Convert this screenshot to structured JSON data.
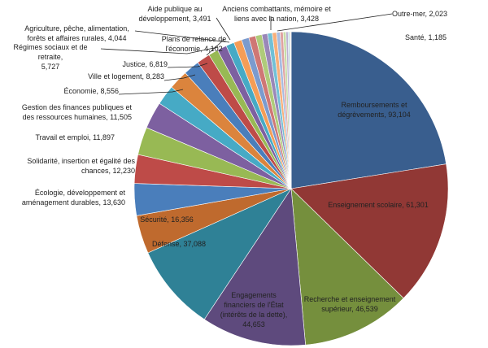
{
  "chart_data": {
    "type": "pie",
    "title": "",
    "start": "top",
    "direction": "clockwise",
    "slices": [
      {
        "label": "Remboursements et\ndégrèvements, 93,104",
        "name": "Remboursements et dégrèvements",
        "value": 93104,
        "color": "#395E8E"
      },
      {
        "label": "Enseignement scolaire, 61,301",
        "name": "Enseignement scolaire",
        "value": 61301,
        "color": "#913835"
      },
      {
        "label": "Recherche et enseignement\nsupérieur, 46,539",
        "name": "Recherche et enseignement supérieur",
        "value": 46539,
        "color": "#758F3D"
      },
      {
        "label": "Engagements\nfinanciers de l'État\n(intérêts de la dette),\n44,653",
        "name": "Engagements financiers de l'État (intérêts de la dette)",
        "value": 44653,
        "color": "#5E4A7D"
      },
      {
        "label": "Défense, 37,088",
        "name": "Défense",
        "value": 37088,
        "color": "#2F8196"
      },
      {
        "label": "Sécurité, 16,356",
        "name": "Sécurité",
        "value": 16356,
        "color": "#BF6A2E"
      },
      {
        "label": "Écologie, développement et\naménagement durables, 13,630",
        "name": "Écologie, développement et aménagement durables",
        "value": 13630,
        "color": "#4A7EBB"
      },
      {
        "label": "Solidarité, insertion et égalité des\nchances, 12,230",
        "name": "Solidarité, insertion et égalité des chances",
        "value": 12230,
        "color": "#BE4B48"
      },
      {
        "label": "Travail et emploi, 11,897",
        "name": "Travail et emploi",
        "value": 11897,
        "color": "#98B954"
      },
      {
        "label": "Gestion des finances publiques et\ndes ressources humaines, 11,505",
        "name": "Gestion des finances publiques et des ressources humaines",
        "value": 11505,
        "color": "#7D60A0"
      },
      {
        "label": "Économie, 8,556",
        "name": "Économie",
        "value": 8556,
        "color": "#46AAC5"
      },
      {
        "label": "Ville et logement, 8,283",
        "name": "Ville et logement",
        "value": 8283,
        "color": "#DB843D"
      },
      {
        "label": "Justice, 6,819",
        "name": "Justice",
        "value": 6819,
        "color": "#4A7EBB"
      },
      {
        "label": "Régimes sociaux et de retraite,\n5,727",
        "name": "Régimes sociaux et de retraite",
        "value": 5727,
        "color": "#BE4B48"
      },
      {
        "label": "Plans de relance de\nl'économie, 4,102",
        "name": "Plans de relance de l'économie",
        "value": 4102,
        "color": "#98B954"
      },
      {
        "label": "Agriculture, pêche, alimentation,\nforêts et affaires rurales, 4,044",
        "name": "Agriculture, pêche, alimentation, forêts et affaires rurales",
        "value": 4044,
        "color": "#7D60A0"
      },
      {
        "label": "Aide publique au\ndéveloppement, 3,491",
        "name": "Aide publique au développement",
        "value": 3491,
        "color": "#46AAC5"
      },
      {
        "label": "Anciens combattants, mémoire et\nliens avec la nation, 3,428",
        "name": "Anciens combattants, mémoire et liens avec la nation",
        "value": 3428,
        "color": "#F59D56"
      },
      {
        "label": "",
        "name": "",
        "value": 3200,
        "color": "#7B9BCE"
      },
      {
        "label": "",
        "name": "",
        "value": 2900,
        "color": "#CF7775"
      },
      {
        "label": "",
        "name": "",
        "value": 2700,
        "color": "#AFCB7A"
      },
      {
        "label": "",
        "name": "",
        "value": 2400,
        "color": "#9A87B8"
      },
      {
        "label": "Outre-mer, 2,023",
        "name": "Outre-mer",
        "value": 2023,
        "color": "#72C0D6"
      },
      {
        "label": "",
        "name": "",
        "value": 1800,
        "color": "#F8AF7A"
      },
      {
        "label": "",
        "name": "",
        "value": 1500,
        "color": "#A7BCE0"
      },
      {
        "label": "",
        "name": "",
        "value": 1300,
        "color": "#DFA3A2"
      },
      {
        "label": "Santé, 1,185",
        "name": "Santé",
        "value": 1185,
        "color": "#C8DCA7"
      },
      {
        "label": "",
        "name": "",
        "value": 900,
        "color": "#BDB1D3"
      },
      {
        "label": "",
        "name": "",
        "value": 600,
        "color": "#A5D6E4"
      },
      {
        "label": "",
        "name": "",
        "value": 400,
        "color": "#FAC9A6"
      },
      {
        "label": "",
        "name": "",
        "value": 300,
        "color": "#D0DCEE"
      }
    ]
  }
}
